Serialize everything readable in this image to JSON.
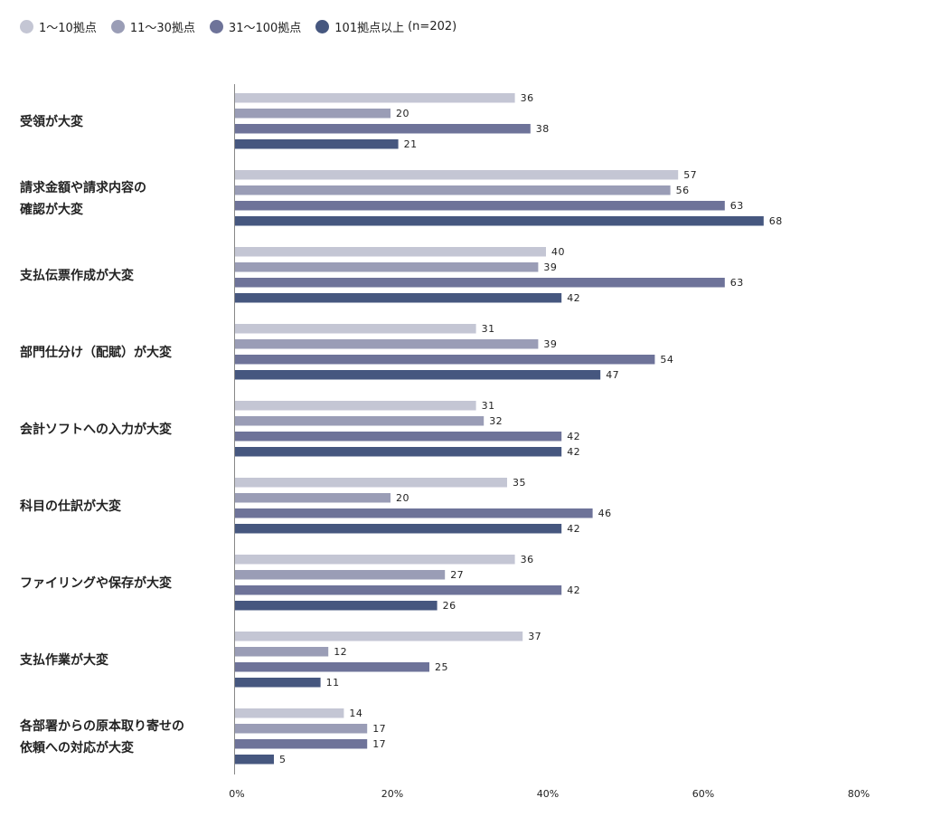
{
  "legend": {
    "items": [
      "1〜10拠点",
      "11〜30拠点",
      "31〜100拠点",
      "101拠点以上"
    ],
    "n_label": "(n=202)"
  },
  "chart_data": {
    "type": "bar",
    "orientation": "horizontal",
    "categories": [
      [
        "受領が大変"
      ],
      [
        "請求金額や請求内容の",
        "確認が大変"
      ],
      [
        "支払伝票作成が大変"
      ],
      [
        "部門仕分け（配賦）が大変"
      ],
      [
        "会計ソフトへの入力が大変"
      ],
      [
        "科目の仕訳が大変"
      ],
      [
        "ファイリングや保存が大変"
      ],
      [
        "支払作業が大変"
      ],
      [
        "各部署からの原本取り寄せの",
        "依頼への対応が大変"
      ]
    ],
    "series": [
      {
        "name": "1〜10拠点",
        "color": "#c4c6d4",
        "values": [
          36,
          57,
          40,
          31,
          31,
          35,
          36,
          37,
          14
        ]
      },
      {
        "name": "11〜30拠点",
        "color": "#9a9db6",
        "values": [
          20,
          56,
          39,
          39,
          32,
          20,
          27,
          12,
          17
        ]
      },
      {
        "name": "31〜100拠点",
        "color": "#6e7399",
        "values": [
          38,
          63,
          63,
          54,
          42,
          46,
          42,
          25,
          17
        ]
      },
      {
        "name": "101拠点以上",
        "color": "#46577f",
        "values": [
          21,
          68,
          42,
          47,
          42,
          42,
          26,
          11,
          5
        ]
      }
    ],
    "xlim": [
      0,
      80
    ],
    "xticks": [
      "0%",
      "20%",
      "40%",
      "60%",
      "80%"
    ],
    "grid": false,
    "legend_position": "top-left"
  }
}
